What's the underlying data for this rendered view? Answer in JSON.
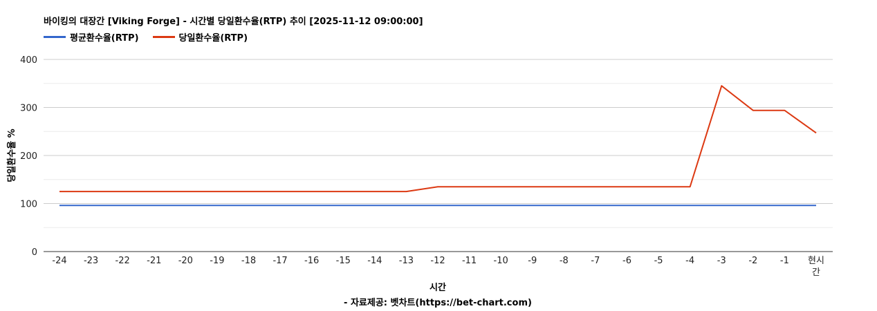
{
  "chart_data": {
    "type": "line",
    "title": "바이킹의 대장간 [Viking Forge] - 시간별 당일환수율(RTP) 추이 [2025-11-12 09:00:00]",
    "xlabel": "시간",
    "xlabel_sub": "- 자료제공: 벳차트(https://bet-chart.com)",
    "ylabel": "당일환수율 %",
    "ylim": [
      0,
      400
    ],
    "yticks": [
      "0",
      "100",
      "200",
      "300",
      "400"
    ],
    "grid": true,
    "legend_position": "top-left",
    "categories": [
      "-24",
      "-23",
      "-22",
      "-21",
      "-20",
      "-19",
      "-18",
      "-17",
      "-16",
      "-15",
      "-14",
      "-13",
      "-12",
      "-11",
      "-10",
      "-9",
      "-8",
      "-7",
      "-6",
      "-5",
      "-4",
      "-3",
      "-2",
      "-1",
      "현시간"
    ],
    "series": [
      {
        "name": "평균환수율(RTP)",
        "color": "#3366cc",
        "values": [
          96,
          96,
          96,
          96,
          96,
          96,
          96,
          96,
          96,
          96,
          96,
          96,
          96,
          96,
          96,
          96,
          96,
          96,
          96,
          96,
          96,
          96,
          96,
          96,
          96
        ]
      },
      {
        "name": "당일환수율(RTP)",
        "color": "#dc3912",
        "values": [
          125,
          125,
          125,
          125,
          125,
          125,
          125,
          125,
          125,
          125,
          125,
          125,
          135,
          135,
          135,
          135,
          135,
          135,
          135,
          135,
          135,
          345,
          294,
          294,
          247
        ]
      }
    ]
  }
}
